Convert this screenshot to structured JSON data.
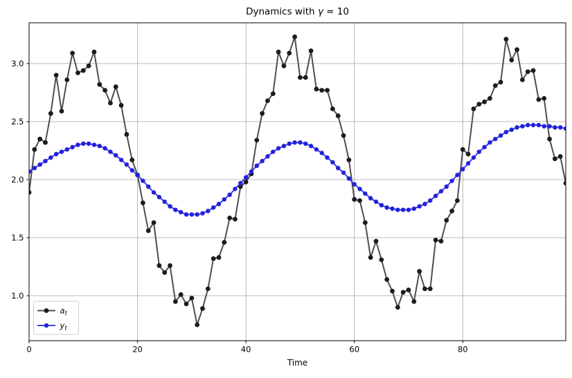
{
  "figure": {
    "title_parts": {
      "prefix": "Dynamics with ",
      "gamma": "γ",
      "suffix": " = 10"
    }
  },
  "chart_data": {
    "type": "line",
    "title": "Dynamics with γ = 10",
    "xlabel": "Time",
    "ylabel": "",
    "xlim": [
      0,
      99
    ],
    "ylim": [
      0.613,
      3.351
    ],
    "xticks": [
      0,
      20,
      40,
      60,
      80
    ],
    "xtick_labels": [
      "0",
      "20",
      "40",
      "60",
      "80"
    ],
    "yticks": [
      1.0,
      1.5,
      2.0,
      2.5,
      3.0
    ],
    "ytick_labels": [
      "1.0",
      "1.5",
      "2.0",
      "2.5",
      "3.0"
    ],
    "grid": true,
    "grid_color": "#b0b0b0",
    "spine_color": "#000000",
    "legend_position": "lower left",
    "legend_border_color": "#cccccc",
    "x": [
      0,
      1,
      2,
      3,
      4,
      5,
      6,
      7,
      8,
      9,
      10,
      11,
      12,
      13,
      14,
      15,
      16,
      17,
      18,
      19,
      20,
      21,
      22,
      23,
      24,
      25,
      26,
      27,
      28,
      29,
      30,
      31,
      32,
      33,
      34,
      35,
      36,
      37,
      38,
      39,
      40,
      41,
      42,
      43,
      44,
      45,
      46,
      47,
      48,
      49,
      50,
      51,
      52,
      53,
      54,
      55,
      56,
      57,
      58,
      59,
      60,
      61,
      62,
      63,
      64,
      65,
      66,
      67,
      68,
      69,
      70,
      71,
      72,
      73,
      74,
      75,
      76,
      77,
      78,
      79,
      80,
      81,
      82,
      83,
      84,
      85,
      86,
      87,
      88,
      89,
      90,
      91,
      92,
      93,
      94,
      95,
      96,
      97,
      98,
      99
    ],
    "series": [
      {
        "name": "a_t",
        "label_main": "a",
        "label_sub": "t",
        "line_color": "#4d4d4d",
        "marker_color": "#1c1c1c",
        "line_width": 2,
        "marker_radius": 3.4,
        "values": [
          1.89,
          2.26,
          2.35,
          2.32,
          2.57,
          2.9,
          2.59,
          2.86,
          3.09,
          2.92,
          2.94,
          2.98,
          3.1,
          2.82,
          2.77,
          2.66,
          2.8,
          2.64,
          2.39,
          2.17,
          2.04,
          1.8,
          1.56,
          1.63,
          1.26,
          1.2,
          1.26,
          0.95,
          1.01,
          0.93,
          0.98,
          0.75,
          0.89,
          1.06,
          1.32,
          1.33,
          1.46,
          1.67,
          1.66,
          1.94,
          1.98,
          2.05,
          2.34,
          2.57,
          2.68,
          2.74,
          3.1,
          2.98,
          3.09,
          3.23,
          2.88,
          2.88,
          3.11,
          2.78,
          2.77,
          2.77,
          2.61,
          2.55,
          2.38,
          2.17,
          1.83,
          1.82,
          1.63,
          1.33,
          1.47,
          1.31,
          1.14,
          1.04,
          0.9,
          1.03,
          1.05,
          0.95,
          1.21,
          1.06,
          1.06,
          1.48,
          1.47,
          1.65,
          1.73,
          1.82,
          2.26,
          2.22,
          2.61,
          2.65,
          2.67,
          2.7,
          2.81,
          2.84,
          3.21,
          3.03,
          3.12,
          2.86,
          2.93,
          2.94,
          2.69,
          2.7,
          2.35,
          2.18,
          2.2,
          1.97
        ]
      },
      {
        "name": "y_t",
        "label_main": "y",
        "label_sub": "t",
        "line_color": "#4040e8",
        "marker_color": "#2222dd",
        "line_width": 2,
        "marker_radius": 3.2,
        "values": [
          2.07,
          2.1,
          2.13,
          2.16,
          2.19,
          2.22,
          2.24,
          2.26,
          2.28,
          2.3,
          2.31,
          2.31,
          2.3,
          2.29,
          2.27,
          2.24,
          2.21,
          2.17,
          2.13,
          2.08,
          2.04,
          1.99,
          1.94,
          1.89,
          1.85,
          1.81,
          1.77,
          1.74,
          1.72,
          1.7,
          1.7,
          1.7,
          1.71,
          1.73,
          1.76,
          1.79,
          1.83,
          1.87,
          1.92,
          1.97,
          2.02,
          2.07,
          2.12,
          2.16,
          2.2,
          2.24,
          2.27,
          2.29,
          2.31,
          2.32,
          2.32,
          2.31,
          2.29,
          2.26,
          2.23,
          2.19,
          2.15,
          2.1,
          2.06,
          2.01,
          1.96,
          1.92,
          1.88,
          1.84,
          1.81,
          1.78,
          1.76,
          1.75,
          1.74,
          1.74,
          1.74,
          1.75,
          1.77,
          1.79,
          1.82,
          1.86,
          1.9,
          1.94,
          1.99,
          2.04,
          2.09,
          2.14,
          2.19,
          2.24,
          2.28,
          2.32,
          2.35,
          2.38,
          2.41,
          2.43,
          2.45,
          2.46,
          2.47,
          2.47,
          2.47,
          2.46,
          2.46,
          2.45,
          2.45,
          2.44
        ]
      }
    ]
  }
}
